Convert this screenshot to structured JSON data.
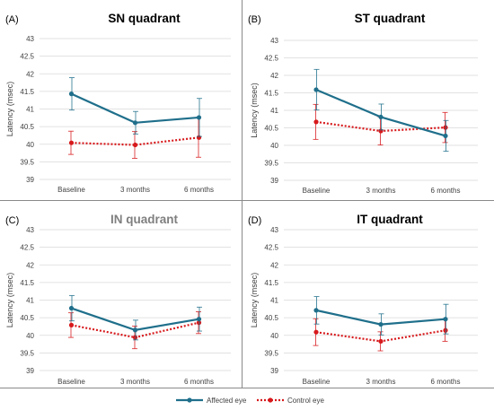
{
  "legend": {
    "entries": [
      {
        "label": "Affected eye",
        "color": "#1f6f8b",
        "style": "solid"
      },
      {
        "label": "Control eye",
        "color": "#d7191c",
        "style": "dotted"
      }
    ],
    "placement": "bottom-center"
  },
  "chart_data": [
    {
      "type": "line",
      "panel_label": "(A)",
      "title": "SN quadrant",
      "title_color": "#000000",
      "ylabel": "Latency (msec)",
      "xlabel": "",
      "categories": [
        "Baseline",
        "3 months",
        "6 months"
      ],
      "ylim": [
        39,
        43
      ],
      "yticks": [
        "39",
        "39.5",
        "40",
        "40.5",
        "41",
        "41.5",
        "42",
        "42.5",
        "43"
      ],
      "grid": true,
      "series": [
        {
          "name": "Affected eye",
          "color": "#1f6f8b",
          "style": "solid",
          "marker": "circle",
          "values": [
            41.43,
            40.61,
            40.76
          ],
          "error": [
            0.46,
            0.32,
            0.54
          ]
        },
        {
          "name": "Control eye",
          "color": "#d7191c",
          "style": "dotted",
          "marker": "circle",
          "values": [
            40.04,
            39.98,
            40.19
          ],
          "error": [
            0.33,
            0.38,
            0.56
          ]
        }
      ]
    },
    {
      "type": "line",
      "panel_label": "(B)",
      "title": "ST quadrant",
      "title_color": "#000000",
      "ylabel": "Latency (msec)",
      "xlabel": "",
      "categories": [
        "Baseline",
        "3 months",
        "6 months"
      ],
      "ylim": [
        39,
        43
      ],
      "yticks": [
        "39",
        "39.5",
        "40",
        "40.5",
        "41",
        "41.5",
        "42",
        "42.5",
        "43"
      ],
      "grid": true,
      "series": [
        {
          "name": "Affected eye",
          "color": "#1f6f8b",
          "style": "solid",
          "marker": "circle",
          "values": [
            41.59,
            40.81,
            40.27
          ],
          "error": [
            0.58,
            0.37,
            0.44
          ]
        },
        {
          "name": "Control eye",
          "color": "#d7191c",
          "style": "dotted",
          "marker": "circle",
          "values": [
            40.67,
            40.41,
            40.51
          ],
          "error": [
            0.5,
            0.4,
            0.43
          ]
        }
      ]
    },
    {
      "type": "line",
      "panel_label": "(C)",
      "title": "IN quadrant",
      "title_color": "#7f7f7f",
      "ylabel": "Latency (msec)",
      "xlabel": "",
      "categories": [
        "Baseline",
        "3 months",
        "6 months"
      ],
      "ylim": [
        39,
        43
      ],
      "yticks": [
        "39",
        "39.5",
        "40",
        "40.5",
        "41",
        "41.5",
        "42",
        "42.5",
        "43"
      ],
      "grid": true,
      "series": [
        {
          "name": "Affected eye",
          "color": "#1f6f8b",
          "style": "solid",
          "marker": "circle",
          "values": [
            40.77,
            40.15,
            40.46
          ],
          "error": [
            0.36,
            0.28,
            0.34
          ]
        },
        {
          "name": "Control eye",
          "color": "#d7191c",
          "style": "dotted",
          "marker": "circle",
          "values": [
            40.29,
            39.94,
            40.36
          ],
          "error": [
            0.35,
            0.32,
            0.31
          ]
        }
      ]
    },
    {
      "type": "line",
      "panel_label": "(D)",
      "title": "IT quadrant",
      "title_color": "#000000",
      "ylabel": "Latency (msec)",
      "xlabel": "",
      "categories": [
        "Baseline",
        "3 months",
        "6 months"
      ],
      "ylim": [
        39,
        43
      ],
      "yticks": [
        "39",
        "39.5",
        "40",
        "40.5",
        "41",
        "41.5",
        "42",
        "42.5",
        "43"
      ],
      "grid": true,
      "series": [
        {
          "name": "Affected eye",
          "color": "#1f6f8b",
          "style": "solid",
          "marker": "circle",
          "values": [
            40.71,
            40.31,
            40.46
          ],
          "error": [
            0.39,
            0.3,
            0.42
          ]
        },
        {
          "name": "Control eye",
          "color": "#d7191c",
          "style": "dotted",
          "marker": "circle",
          "values": [
            40.09,
            39.83,
            40.14
          ],
          "error": [
            0.38,
            0.27,
            0.31
          ]
        }
      ]
    }
  ]
}
